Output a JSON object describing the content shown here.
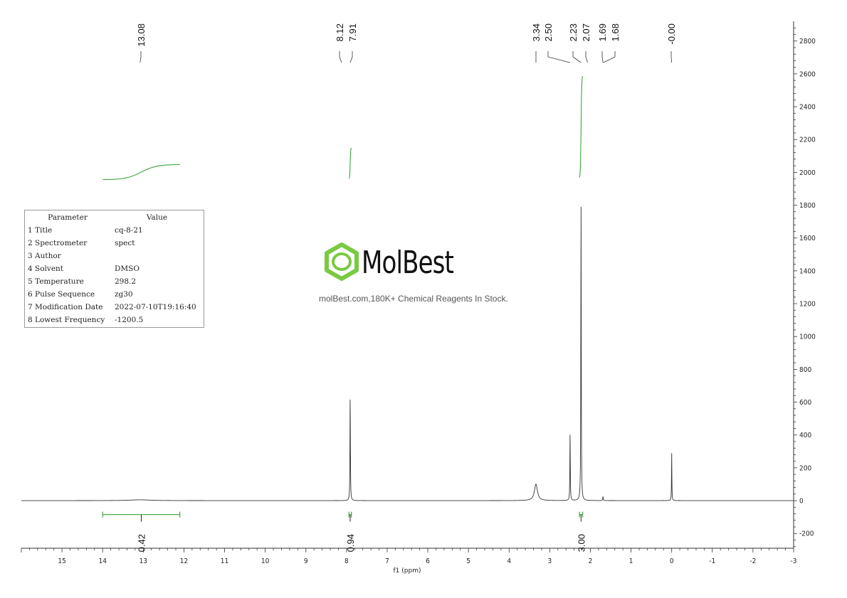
{
  "chart_data": {
    "type": "line",
    "title": "",
    "xlabel": "f1 (ppm)",
    "ylabel": "",
    "xlim": [
      16.0,
      -3.0
    ],
    "ylim": [
      -290,
      2920
    ],
    "x_ticks": [
      15,
      14,
      13,
      12,
      11,
      10,
      9,
      8,
      7,
      6,
      5,
      4,
      3,
      2,
      1,
      0,
      -1,
      -2,
      -3
    ],
    "x_tick_labels": [
      "15",
      "14",
      "13",
      "12",
      "11",
      "10",
      "9",
      "8",
      "7",
      "6",
      "5",
      "4",
      "3",
      "2",
      "1",
      "0",
      "-1",
      "-2",
      "-3"
    ],
    "y_ticks": [
      -200,
      0,
      200,
      400,
      600,
      800,
      1000,
      1200,
      1400,
      1600,
      1800,
      2000,
      2200,
      2400,
      2600,
      2800
    ],
    "y_tick_labels": [
      "-200",
      "0",
      "200",
      "400",
      "600",
      "800",
      "1000",
      "1200",
      "1400",
      "1600",
      "1800",
      "2000",
      "2200",
      "2400",
      "2600",
      "2800"
    ],
    "series": [
      {
        "color": "#333333",
        "peaks": [
          {
            "ppm": 13.08,
            "height": 5,
            "width": 0.6
          },
          {
            "ppm": 7.91,
            "height": 650,
            "width": 0.012
          },
          {
            "ppm": 3.34,
            "height": 100,
            "width": 0.09
          },
          {
            "ppm": 2.5,
            "height": 410,
            "width": 0.012
          },
          {
            "ppm": 2.23,
            "height": 1800,
            "width": 0.012
          },
          {
            "ppm": 1.69,
            "height": 25,
            "width": 0.015
          },
          {
            "ppm": 0.0,
            "height": 295,
            "width": 0.01
          }
        ]
      }
    ],
    "peak_labels": [
      "13.08",
      "8.12",
      "7.91",
      "3.34",
      "2.50",
      "2.23",
      "2.07",
      "1.69",
      "1.68",
      "-0.00"
    ],
    "integrals": [
      {
        "from": 14.0,
        "to": 12.1,
        "value": "0.42",
        "curve_start": 1955,
        "curve_end": 2048,
        "color": "#3aa63a"
      },
      {
        "from": 7.94,
        "to": 7.88,
        "value": "0.94",
        "curve_start": 1960,
        "curve_end": 2150,
        "color": "#3aa63a"
      },
      {
        "from": 2.27,
        "to": 2.19,
        "value": "3.00",
        "curve_start": 1965,
        "curve_end": 2590,
        "color": "#3aa63a"
      }
    ]
  },
  "params": {
    "header": {
      "parameter": "Parameter",
      "value": "Value"
    },
    "rows": [
      {
        "label": "1 Title",
        "value": "cq-8-21"
      },
      {
        "label": "2 Spectrometer",
        "value": "spect"
      },
      {
        "label": "3 Author",
        "value": ""
      },
      {
        "label": "4 Solvent",
        "value": "DMSO"
      },
      {
        "label": "5 Temperature",
        "value": "298.2"
      },
      {
        "label": "6 Pulse Sequence",
        "value": "zg30"
      },
      {
        "label": "7 Modification Date",
        "value": "2022-07-10T19:16:40"
      },
      {
        "label": "8 Lowest Frequency",
        "value": "-1200.5"
      }
    ]
  },
  "watermark": {
    "brand": "MolBest",
    "tagline": "molBest.com,180K+ Chemical Reagents In Stock.",
    "color": "#7ac943"
  }
}
